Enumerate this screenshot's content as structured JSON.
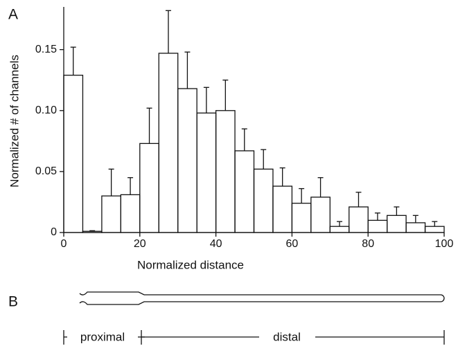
{
  "chart_data": {
    "type": "histogram",
    "panel_label": "A",
    "xlabel": "Normalized distance",
    "ylabel": "Normalized # of channels",
    "bins": [
      0,
      5,
      10,
      15,
      20,
      25,
      30,
      35,
      40,
      45,
      50,
      55,
      60,
      65,
      70,
      75,
      80,
      85,
      90,
      95,
      100
    ],
    "values": [
      0.129,
      0.001,
      0.03,
      0.031,
      0.073,
      0.147,
      0.118,
      0.098,
      0.1,
      0.067,
      0.052,
      0.038,
      0.024,
      0.029,
      0.005,
      0.021,
      0.01,
      0.014,
      0.008,
      0.005
    ],
    "errors": [
      0.023,
      0.0005,
      0.022,
      0.014,
      0.029,
      0.035,
      0.03,
      0.021,
      0.025,
      0.018,
      0.016,
      0.015,
      0.012,
      0.016,
      0.004,
      0.012,
      0.006,
      0.007,
      0.006,
      0.004
    ],
    "color": "#ffffff",
    "xlim": [
      0,
      100
    ],
    "xticks": [
      0,
      20,
      40,
      60,
      80,
      100
    ],
    "ylim": [
      0,
      0.185
    ],
    "yticks": [
      0,
      0.05,
      {
        "value": 0.1,
        "label": "0.10"
      },
      0.15
    ]
  },
  "diagram": {
    "panel_label": "B",
    "segments": [
      "proximal",
      "distal"
    ]
  }
}
